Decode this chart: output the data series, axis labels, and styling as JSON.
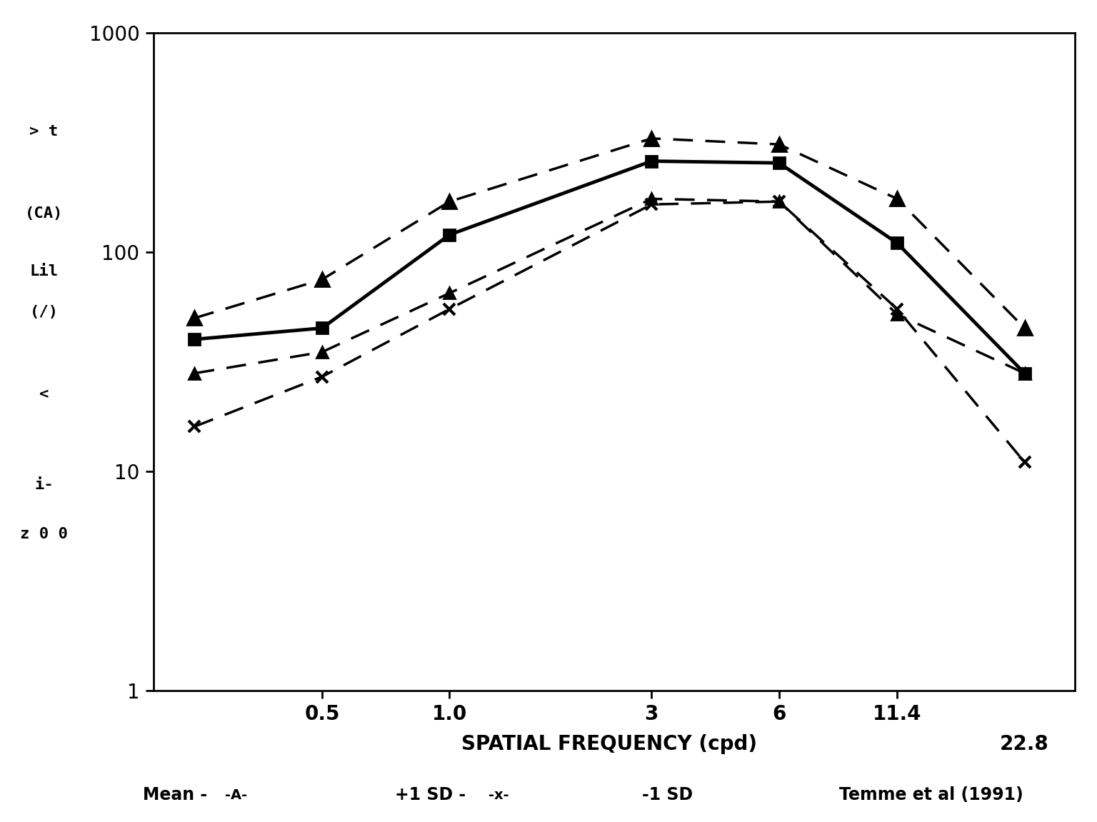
{
  "spatial_freqs": [
    0.25,
    0.5,
    1.0,
    3.0,
    6.0,
    11.4,
    22.8
  ],
  "mean_values": [
    40,
    45,
    120,
    260,
    255,
    110,
    28
  ],
  "plus1sd_values": [
    50,
    75,
    170,
    330,
    310,
    175,
    45
  ],
  "minus1sd_values": [
    28,
    35,
    65,
    175,
    170,
    52,
    28
  ],
  "temme_values": [
    16,
    27,
    55,
    165,
    170,
    55,
    11
  ],
  "background_color": "#ffffff",
  "ylim": [
    1,
    1000
  ],
  "xtick_freqs": [
    0.5,
    1.0,
    3.0,
    6.0,
    11.4
  ],
  "xtick_labels": [
    "0.5",
    "1.0",
    "3",
    "6",
    "11.4"
  ],
  "freq_228": 22.8,
  "label_228": "22.8",
  "xlabel": "SPATIAL FREQUENCY (cpd)",
  "left_labels": [
    "> t",
    "(CA)",
    "Lil",
    "(/)",
    "<",
    "i-",
    "z 0 0"
  ],
  "left_y_fracs": [
    0.84,
    0.74,
    0.67,
    0.62,
    0.52,
    0.41,
    0.35
  ],
  "legend_mean": "Mean -",
  "legend_mean_marker": "-A-",
  "legend_plus1sd": "+1 SD -",
  "legend_plus1sd_marker": "-x-",
  "legend_minus1sd": "-1 SD",
  "legend_temme": "Temme et al (1991)"
}
